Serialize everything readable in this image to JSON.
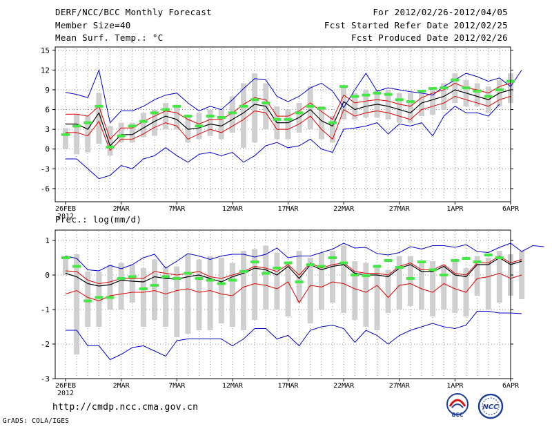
{
  "header": {
    "title": "DERF/NCC/BCC Monthly Forecast",
    "member_size": "Member Size=40",
    "variable": "Mean Surf. Temp.: °C",
    "period": "For 2012/02/26-2012/04/05",
    "refer_date": "Fcst Started Refer Date 2012/02/25",
    "produced_date": "Fcst Produced Date 2012/02/26"
  },
  "footer": {
    "url": "http://cmdp.ncc.cma.gov.cn",
    "credit": "GrADS: COLA/IGES",
    "logo_left": "BCC",
    "logo_right": "NCC"
  },
  "colors": {
    "max_min": "#0000cc",
    "spread": "#dd0000",
    "mean": "#000000",
    "box": "#cfcfcf",
    "obs": "#44e844"
  },
  "chart_data": [
    {
      "type": "line",
      "title": "Mean Surf. Temp.: °C",
      "x_tick_labels": [
        "26FEB",
        "2MAR",
        "7MAR",
        "12MAR",
        "17MAR",
        "22MAR",
        "27MAR",
        "1APR",
        "6APR"
      ],
      "x_year_label": "2012",
      "y_ticks": [
        -6,
        -3,
        0,
        3,
        6,
        9,
        12,
        15
      ],
      "ylim": [
        -8,
        15.5
      ],
      "days": 40,
      "series": [
        {
          "name": "max",
          "values": [
            8.6,
            8.3,
            7.8,
            12.0,
            4.0,
            5.8,
            5.8,
            6.5,
            7.5,
            8.2,
            8.5,
            7.0,
            5.8,
            6.5,
            6.0,
            7.5,
            9.2,
            10.7,
            10.5,
            8.0,
            7.2,
            8.0,
            9.3,
            10.0,
            8.8,
            6.3,
            9.0,
            11.5,
            8.8,
            9.3,
            9.0,
            8.7,
            8.5,
            8.2,
            9.5,
            10.5,
            11.5,
            11.0,
            10.3,
            10.8,
            9.5,
            12.0
          ]
        },
        {
          "name": "p75",
          "values": [
            5.3,
            5.3,
            5.0,
            6.5,
            1.5,
            3.2,
            3.2,
            4.2,
            5.0,
            5.8,
            5.5,
            4.5,
            3.8,
            4.5,
            4.5,
            5.5,
            6.8,
            7.8,
            7.5,
            5.0,
            5.0,
            5.8,
            7.0,
            5.7,
            4.5,
            8.2,
            7.0,
            7.3,
            7.5,
            7.3,
            6.8,
            6.5,
            7.8,
            8.5,
            9.0,
            10.0,
            9.3,
            9.0,
            8.5,
            9.5,
            10.0
          ]
        },
        {
          "name": "mean",
          "values": [
            3.8,
            3.8,
            3.0,
            5.5,
            0.5,
            2.2,
            2.2,
            3.2,
            4.2,
            5.0,
            4.5,
            3.0,
            3.2,
            3.8,
            3.5,
            4.5,
            5.5,
            6.8,
            6.5,
            4.0,
            4.0,
            4.8,
            6.0,
            4.3,
            3.5,
            7.2,
            6.0,
            6.5,
            6.8,
            6.5,
            6.0,
            5.5,
            7.0,
            7.5,
            8.0,
            9.0,
            8.5,
            8.0,
            7.5,
            8.5,
            9.0
          ]
        },
        {
          "name": "p25",
          "values": [
            2.5,
            2.5,
            2.0,
            4.2,
            -0.2,
            1.5,
            1.5,
            2.3,
            3.3,
            4.0,
            3.5,
            1.5,
            2.3,
            3.0,
            2.5,
            3.5,
            4.5,
            5.8,
            5.5,
            3.0,
            3.0,
            3.8,
            5.0,
            3.0,
            1.5,
            6.0,
            5.0,
            5.5,
            5.8,
            5.5,
            5.0,
            4.5,
            6.0,
            6.5,
            7.0,
            8.0,
            7.5,
            7.0,
            6.5,
            7.5,
            8.0
          ]
        },
        {
          "name": "min",
          "values": [
            -1.5,
            -1.5,
            -3.0,
            -4.5,
            -4.0,
            -2.5,
            -3.0,
            -1.5,
            -1.0,
            0.2,
            -1.0,
            -2.0,
            -0.8,
            -0.5,
            -1.0,
            -0.5,
            -2.0,
            -1.0,
            0.5,
            1.0,
            0.2,
            0.5,
            1.5,
            0.0,
            -0.5,
            3.0,
            3.2,
            3.5,
            4.0,
            2.3,
            3.8,
            3.5,
            4.0,
            2.0,
            5.0,
            6.5,
            5.5,
            5.5,
            5.0,
            6.8
          ]
        },
        {
          "name": "box_low",
          "values": [
            0.0,
            -0.8,
            -0.5,
            0.8,
            -1.0,
            1.0,
            1.0,
            1.8,
            2.0,
            3.0,
            3.0,
            1.0,
            1.5,
            2.0,
            1.5,
            2.5,
            0.2,
            1.0,
            3.0,
            1.5,
            1.5,
            2.5,
            3.0,
            1.5,
            1.0,
            4.5,
            4.5,
            4.8,
            4.8,
            4.5,
            4.0,
            4.0,
            5.0,
            5.2,
            6.0,
            7.0,
            6.5,
            6.5,
            5.5,
            6.5,
            7.0
          ]
        },
        {
          "name": "box_high",
          "values": [
            3.2,
            5.3,
            5.0,
            8.5,
            3.5,
            4.0,
            4.0,
            5.5,
            6.0,
            7.0,
            6.5,
            5.0,
            5.5,
            6.0,
            6.0,
            8.0,
            10.0,
            11.5,
            10.0,
            6.5,
            6.0,
            7.0,
            9.5,
            6.5,
            5.0,
            9.5,
            8.5,
            9.0,
            9.0,
            9.0,
            8.5,
            8.5,
            8.5,
            9.0,
            10.0,
            11.5,
            10.5,
            10.0,
            9.5,
            10.5,
            11.5
          ]
        },
        {
          "name": "obs",
          "values": [
            2.2,
            3.5,
            4.0,
            6.5,
            0.3,
            2.0,
            3.5,
            4.2,
            5.5,
            6.0,
            6.5,
            5.0,
            3.5,
            5.0,
            4.8,
            5.5,
            6.5,
            7.5,
            7.0,
            4.5,
            4.5,
            5.5,
            6.5,
            6.2,
            4.0,
            9.5,
            8.0,
            8.2,
            8.5,
            8.3,
            7.5,
            7.2,
            8.8,
            9.2,
            9.3,
            10.5,
            9.3,
            8.8,
            8.0,
            9.0,
            10.3
          ]
        }
      ]
    },
    {
      "type": "line",
      "title": "Prec.: log(mm/d)",
      "x_tick_labels": [
        "26FEB",
        "2MAR",
        "7MAR",
        "12MAR",
        "17MAR",
        "22MAR",
        "27MAR",
        "1APR",
        "6APR"
      ],
      "x_year_label": "2012",
      "y_ticks": [
        -3,
        -2,
        -1,
        0,
        1
      ],
      "ylim": [
        -3,
        1.3
      ],
      "days": 40,
      "series": [
        {
          "name": "max",
          "values": [
            0.55,
            0.48,
            0.15,
            0.12,
            0.28,
            0.18,
            0.3,
            0.5,
            0.6,
            0.2,
            0.4,
            0.62,
            0.55,
            0.45,
            0.55,
            0.6,
            0.6,
            0.52,
            0.6,
            0.78,
            0.5,
            0.55,
            0.55,
            0.65,
            0.75,
            0.92,
            0.78,
            0.8,
            0.62,
            0.58,
            0.65,
            0.82,
            0.75,
            0.85,
            0.85,
            0.8,
            0.88,
            0.68,
            0.65,
            0.8,
            0.92,
            0.68,
            0.85,
            0.82
          ]
        },
        {
          "name": "p75",
          "values": [
            0.12,
            0.1,
            -0.15,
            -0.25,
            -0.2,
            -0.1,
            -0.1,
            -0.1,
            0.1,
            0.05,
            0.0,
            0.05,
            0.1,
            -0.05,
            -0.1,
            0.0,
            0.1,
            0.25,
            0.2,
            0.1,
            0.3,
            0.0,
            0.35,
            0.2,
            0.3,
            0.35,
            0.1,
            0.05,
            0.05,
            0.0,
            0.25,
            0.35,
            0.15,
            0.15,
            0.3,
            0.05,
            0.0,
            0.35,
            0.35,
            0.55,
            0.35,
            0.45
          ]
        },
        {
          "name": "mean",
          "values": [
            0.05,
            -0.05,
            -0.25,
            -0.32,
            -0.28,
            -0.15,
            -0.18,
            -0.2,
            -0.05,
            -0.1,
            -0.12,
            -0.05,
            0.0,
            -0.1,
            -0.2,
            -0.05,
            0.05,
            0.2,
            0.15,
            0.0,
            0.25,
            -0.1,
            0.3,
            0.15,
            0.25,
            0.3,
            0.05,
            0.0,
            0.0,
            -0.05,
            0.2,
            0.3,
            0.1,
            0.1,
            0.25,
            0.0,
            -0.05,
            0.3,
            0.3,
            0.5,
            0.3,
            0.4
          ]
        },
        {
          "name": "p25",
          "values": [
            -0.55,
            -0.45,
            -0.65,
            -0.75,
            -0.6,
            -0.55,
            -0.5,
            -0.5,
            -0.45,
            -0.55,
            -0.45,
            -0.4,
            -0.5,
            -0.45,
            -0.55,
            -0.6,
            -0.35,
            -0.25,
            -0.3,
            -0.4,
            -0.2,
            -0.8,
            -0.3,
            -0.35,
            -0.2,
            -0.25,
            -0.4,
            -0.5,
            -0.3,
            -0.65,
            -0.3,
            -0.25,
            -0.4,
            -0.5,
            -0.25,
            -0.4,
            -0.5,
            -0.1,
            -0.05,
            0.05,
            -0.1,
            0.0
          ]
        },
        {
          "name": "min",
          "values": [
            -1.6,
            -1.6,
            -2.05,
            -2.05,
            -2.45,
            -2.3,
            -2.1,
            -2.05,
            -2.2,
            -2.35,
            -1.9,
            -1.85,
            -1.85,
            -1.85,
            -1.85,
            -2.05,
            -1.85,
            -1.55,
            -1.55,
            -1.85,
            -1.75,
            -2.05,
            -1.6,
            -1.5,
            -1.45,
            -1.55,
            -1.95,
            -1.6,
            -1.75,
            -2.0,
            -1.75,
            -1.6,
            -1.5,
            -1.4,
            -1.5,
            -1.55,
            -1.45,
            -1.05,
            -1.05,
            -1.1,
            -1.1,
            -1.12
          ]
        },
        {
          "name": "box_low",
          "values": [
            0.0,
            -2.3,
            -1.5,
            -1.5,
            -1.0,
            -1.0,
            -0.8,
            -1.5,
            -1.3,
            -1.5,
            -1.8,
            -1.7,
            -1.6,
            -1.6,
            -1.4,
            -1.5,
            -1.6,
            -1.3,
            -1.0,
            -1.0,
            -1.2,
            -0.8,
            -1.4,
            -1.0,
            -0.8,
            -1.1,
            -1.3,
            -1.5,
            -1.6,
            -1.1,
            -1.0,
            -0.9,
            -1.0,
            -1.2,
            -1.0,
            -1.1,
            -1.2,
            -0.6,
            -1.0,
            -0.8,
            -0.6,
            -0.7
          ]
        },
        {
          "name": "box_high",
          "values": [
            0.55,
            0.6,
            0.1,
            0.1,
            0.3,
            0.35,
            0.3,
            0.2,
            0.45,
            0.25,
            0.25,
            0.6,
            0.45,
            0.55,
            0.5,
            0.35,
            0.7,
            0.75,
            0.85,
            0.65,
            0.35,
            0.7,
            0.5,
            0.65,
            0.7,
            0.85,
            0.4,
            0.35,
            0.3,
            0.15,
            0.55,
            0.55,
            0.35,
            0.4,
            0.3,
            0.45,
            0.2,
            0.55,
            0.5,
            0.7,
            0.6,
            0.7
          ]
        },
        {
          "name": "obs",
          "values": [
            0.5,
            0.25,
            -0.75,
            -0.65,
            -0.65,
            -0.1,
            -0.05,
            -0.4,
            -0.3,
            -0.05,
            -0.1,
            0.05,
            -0.1,
            -0.15,
            -0.25,
            -0.15,
            0.1,
            0.38,
            0.05,
            0.2,
            0.35,
            -0.2,
            0.3,
            0.25,
            0.5,
            0.35,
            0.0,
            -0.02,
            0.25,
            0.42,
            0.22,
            -0.1,
            0.38,
            0.15,
            0.0,
            0.42,
            0.48,
            0.38,
            0.58,
            0.5
          ]
        }
      ]
    }
  ]
}
